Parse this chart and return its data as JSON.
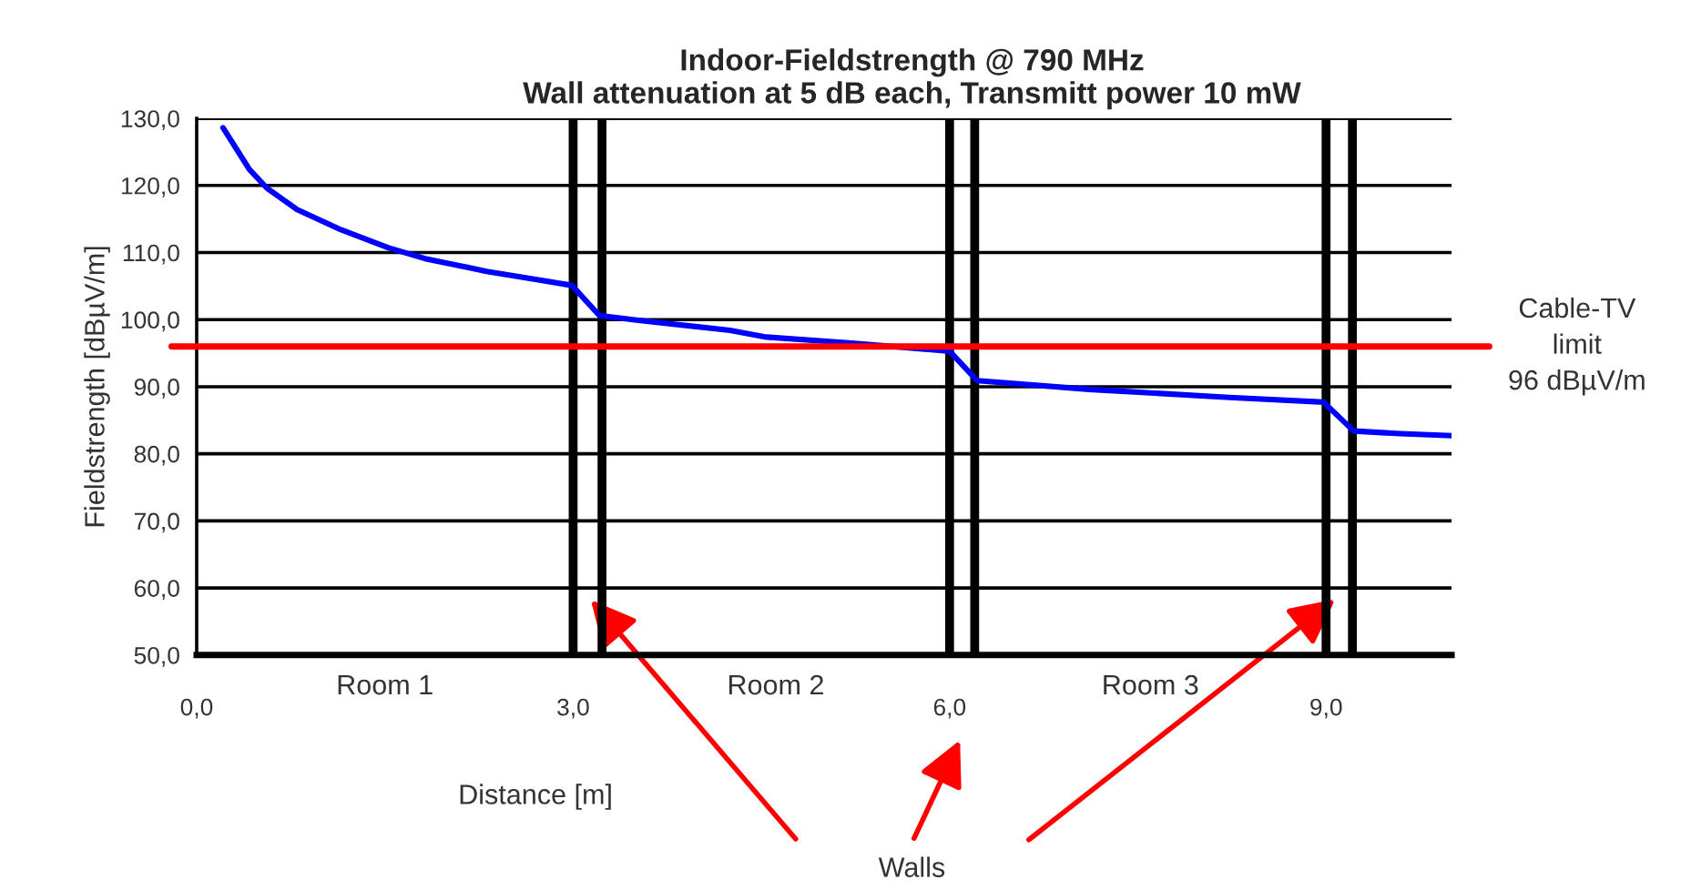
{
  "chart_data": {
    "type": "line",
    "title": "Indoor-Fieldstrength @ 790 MHz\nWall attenuation at 5 dB each, Transmitt power 10 mW",
    "xlabel": "Distance [m]",
    "ylabel": "Fieldstrength [dBµV/m]",
    "x": [
      0.21,
      0.42,
      0.56,
      0.8,
      1.15,
      1.53,
      1.82,
      2.31,
      2.7,
      2.99,
      3.21,
      3.52,
      4.25,
      4.54,
      5.22,
      6.0,
      6.22,
      7.11,
      8.23,
      8.98,
      9.22,
      9.59,
      10.0
    ],
    "series": [
      {
        "color": "#0000ff",
        "values": [
          128.6,
          122.4,
          119.6,
          116.4,
          113.4,
          110.7,
          109.1,
          107.2,
          106.0,
          105.1,
          100.6,
          99.9,
          98.4,
          97.4,
          96.5,
          95.3,
          90.9,
          89.6,
          88.4,
          87.7,
          83.4,
          83.0,
          82.7
        ]
      }
    ],
    "xlim": [
      0,
      10
    ],
    "xticks": [
      {
        "value": 0,
        "label": "0,0"
      },
      {
        "value": 3,
        "label": "3,0"
      },
      {
        "value": 6,
        "label": "6,0"
      },
      {
        "value": 9,
        "label": "9,0"
      }
    ],
    "ylim": [
      50,
      130
    ],
    "yticks": [
      {
        "value": 50,
        "label": "50,0"
      },
      {
        "value": 60,
        "label": "60,0"
      },
      {
        "value": 70,
        "label": "70,0"
      },
      {
        "value": 80,
        "label": "80,0"
      },
      {
        "value": 90,
        "label": "90,0"
      },
      {
        "value": 100,
        "label": "100,0"
      },
      {
        "value": 110,
        "label": "110,0"
      },
      {
        "value": 120,
        "label": "120,0"
      },
      {
        "value": 130,
        "label": "130,0"
      }
    ],
    "grid": "y",
    "marker": "none",
    "line_style": "solid",
    "ref_lines": [
      {
        "axis": "y",
        "value": 96,
        "label": "Cable-TV\nlimit\n96 dBµV/m",
        "color": "#ff0000"
      },
      {
        "axis": "x",
        "value": 3.0,
        "color": "#000000"
      },
      {
        "axis": "x",
        "value": 3.23,
        "color": "#000000"
      },
      {
        "axis": "x",
        "value": 6.0,
        "color": "#000000"
      },
      {
        "axis": "x",
        "value": 6.2,
        "color": "#000000"
      },
      {
        "axis": "x",
        "value": 9.0,
        "color": "#000000"
      },
      {
        "axis": "x",
        "value": 9.21,
        "color": "#000000"
      }
    ],
    "annotations": [
      "Room 1",
      "Room 2",
      "Room 3",
      "Walls"
    ]
  }
}
